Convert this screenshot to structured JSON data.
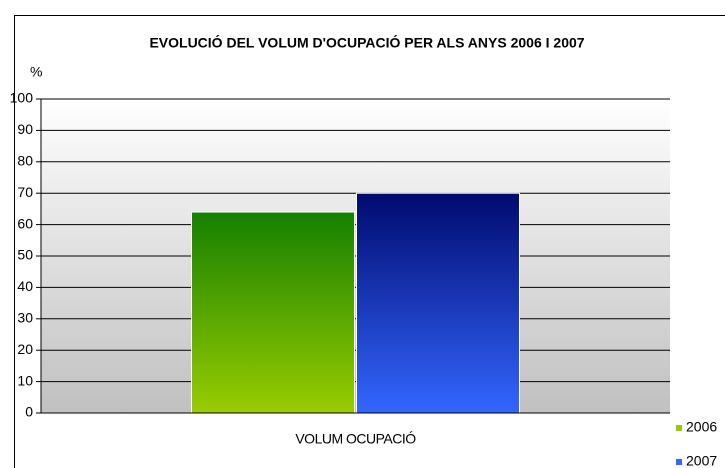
{
  "chart_data": {
    "type": "bar",
    "title": "EVOLUCIÓ DEL VOLUM D'OCUPACIÓ PER ALS ANYS 2006 I 2007",
    "y_label": "%",
    "categories": [
      "VOLUM OCUPACIÓ"
    ],
    "series": [
      {
        "name": "2006",
        "color": "#99cc00",
        "color_top": "#158000",
        "values": [
          64
        ]
      },
      {
        "name": "2007",
        "color": "#3366ff",
        "color_top": "#000a6e",
        "values": [
          70
        ]
      }
    ],
    "ylim": [
      0,
      100
    ],
    "yticks": [
      0,
      10,
      20,
      30,
      40,
      50,
      60,
      70,
      80,
      90,
      100
    ],
    "grid": true,
    "legend": "bottom-right"
  }
}
